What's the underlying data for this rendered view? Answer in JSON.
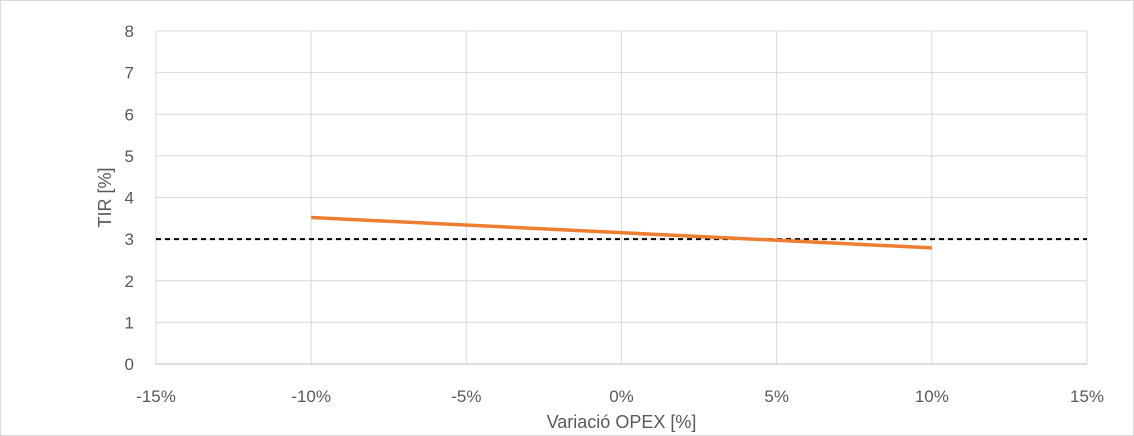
{
  "chart_data": {
    "type": "line",
    "title": "",
    "xlabel": "Variació OPEX [%]",
    "ylabel": "TIR [%]",
    "xlim": [
      -15,
      15
    ],
    "ylim": [
      0,
      8
    ],
    "x_ticks": [
      -15,
      -10,
      -5,
      0,
      5,
      10,
      15
    ],
    "x_tick_labels": [
      "-15%",
      "-10%",
      "-5%",
      "0%",
      "5%",
      "10%",
      "15%"
    ],
    "y_ticks": [
      0,
      1,
      2,
      3,
      4,
      5,
      6,
      7,
      8
    ],
    "y_tick_labels": [
      "0",
      "1",
      "2",
      "3",
      "4",
      "5",
      "6",
      "7",
      "8"
    ],
    "grid": true,
    "legend": "none",
    "series": [
      {
        "x": [
          -10,
          10
        ],
        "values": [
          3.52,
          2.79
        ],
        "color": "#ed7d31",
        "style": "solid"
      }
    ],
    "reference_lines": [
      {
        "y": 3,
        "color": "#000000",
        "style": "dashed"
      }
    ]
  }
}
